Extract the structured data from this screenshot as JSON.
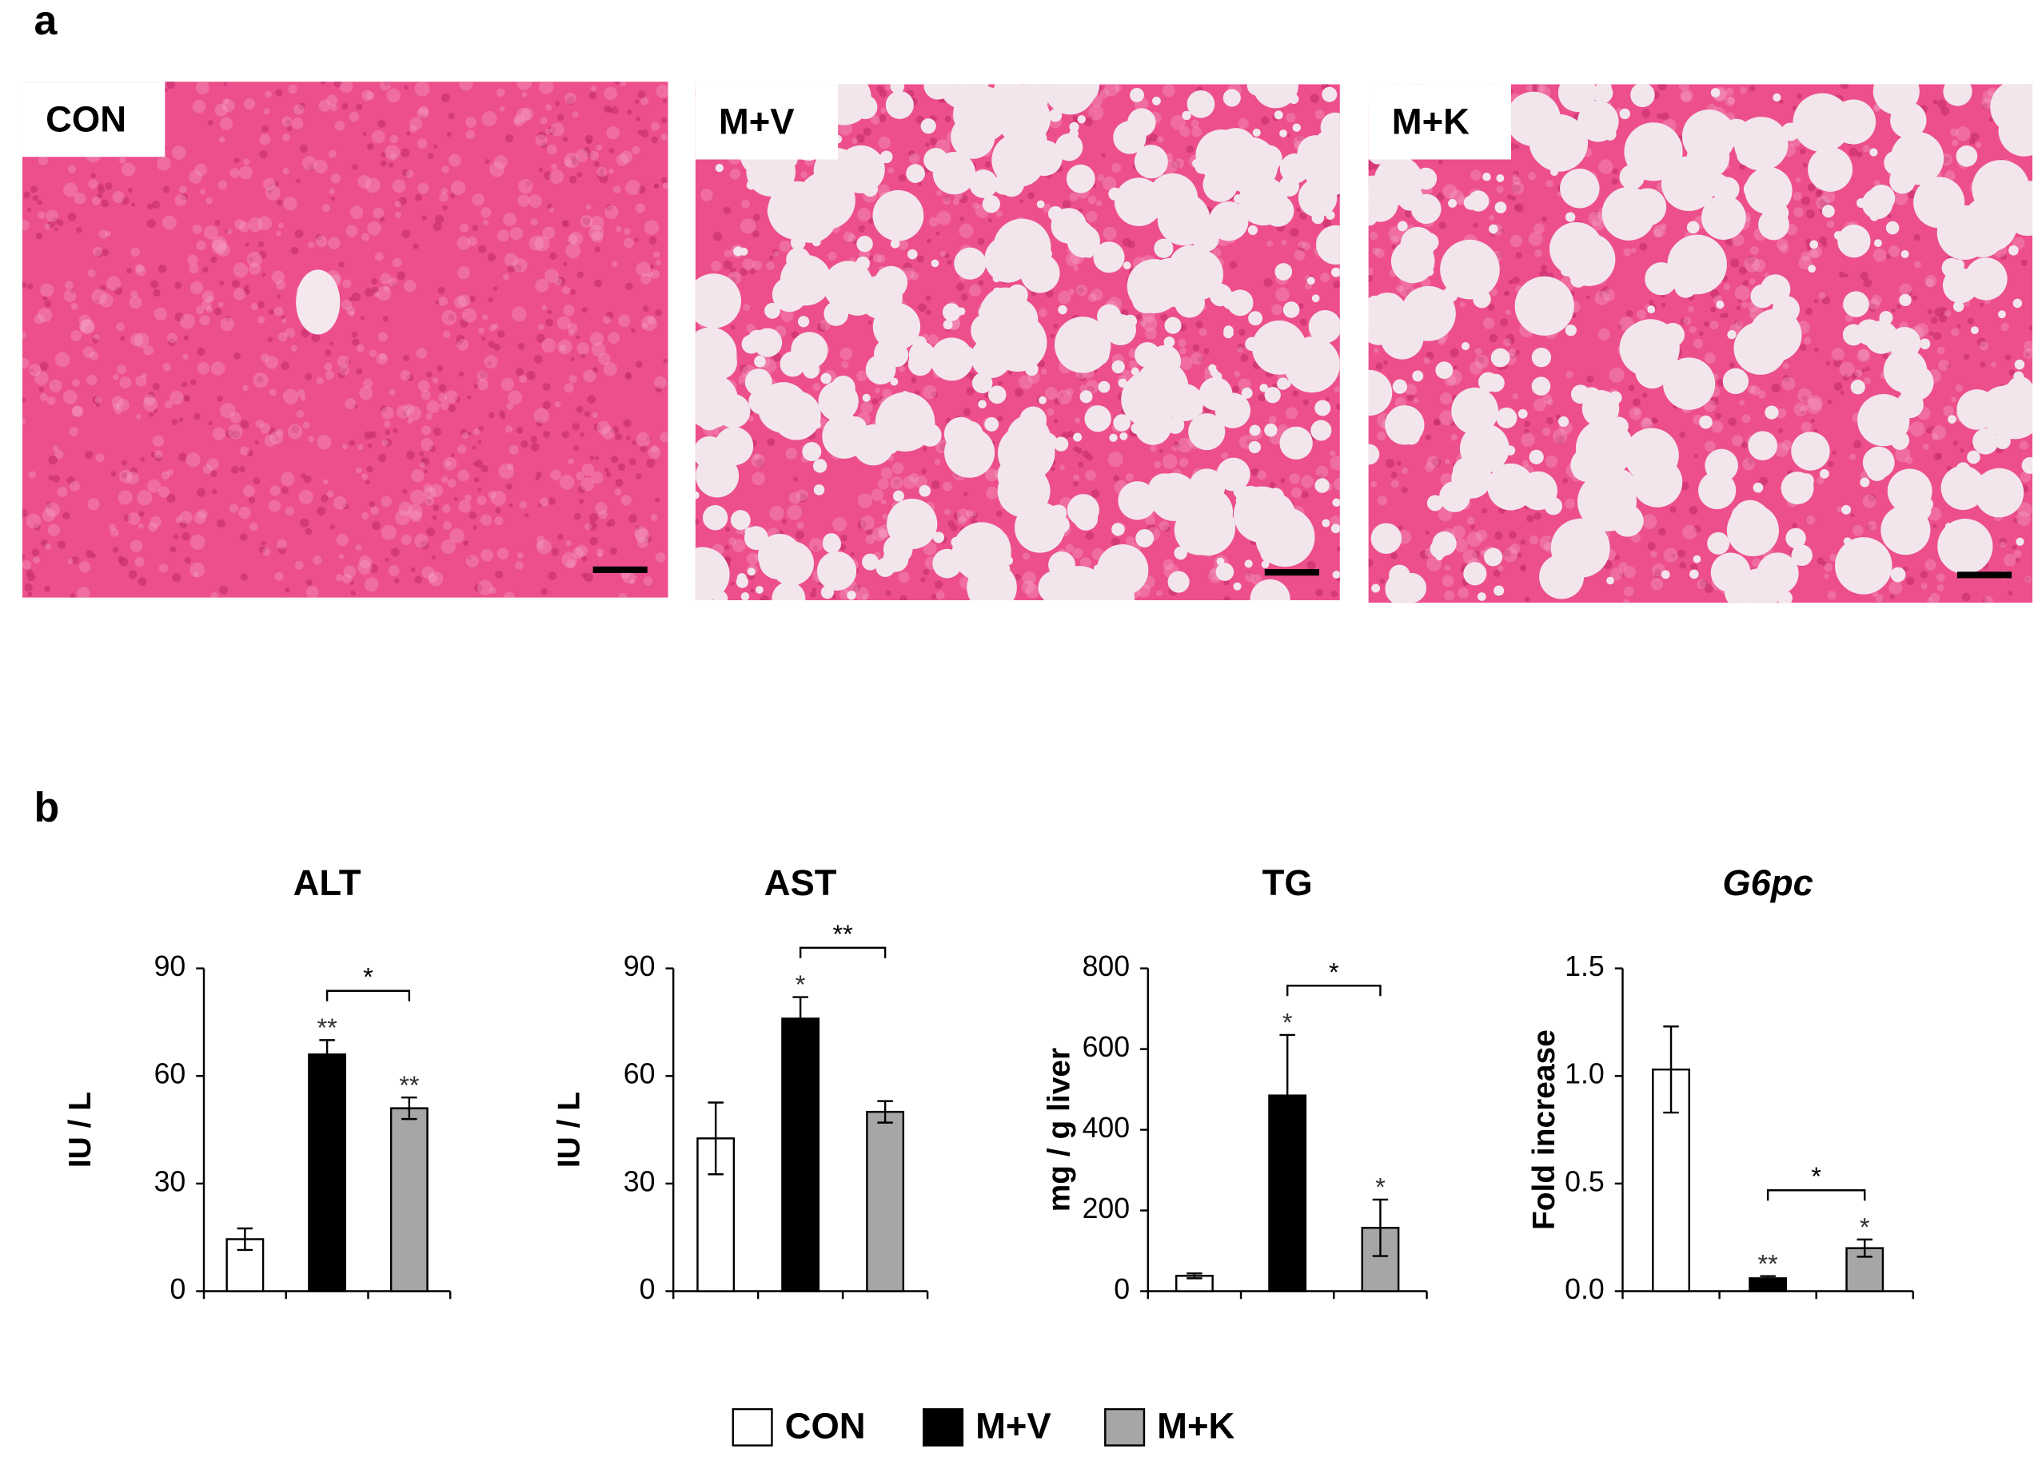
{
  "figure": {
    "panel_a": "a",
    "panel_b": "b",
    "images": [
      "CON",
      "M+V",
      "M+K"
    ]
  },
  "legend": [
    {
      "name": "CON",
      "color": "#ffffff"
    },
    {
      "name": "M+V",
      "color": "#000000"
    },
    {
      "name": "M+K",
      "color": "#a6a6a6"
    }
  ],
  "chart_data": [
    {
      "type": "bar",
      "title": "ALT",
      "ylabel": "IU / L",
      "values": [
        14.5,
        66,
        51
      ],
      "errors": [
        3,
        4,
        3
      ],
      "significance": [
        null,
        "**",
        "**"
      ],
      "comparison": {
        "from": 1,
        "to": 2,
        "label": "*"
      },
      "ylim": [
        0,
        90
      ],
      "yticks": [
        0,
        30,
        60,
        90
      ]
    },
    {
      "type": "bar",
      "title": "AST",
      "ylabel": "IU / L",
      "values": [
        42.6,
        76,
        50
      ],
      "errors": [
        10,
        6,
        3
      ],
      "significance": [
        null,
        "*",
        null
      ],
      "comparison": {
        "from": 1,
        "to": 2,
        "label": "**"
      },
      "ylim": [
        0,
        90
      ],
      "yticks": [
        0,
        30,
        60,
        90
      ]
    },
    {
      "type": "bar",
      "title": "TG",
      "ylabel": "mg / g liver",
      "values": [
        38,
        485,
        157
      ],
      "errors": [
        6,
        150,
        70
      ],
      "significance": [
        null,
        "*",
        "*"
      ],
      "comparison": {
        "from": 1,
        "to": 2,
        "label": "*"
      },
      "ylim": [
        0,
        800
      ],
      "yticks": [
        0,
        200,
        400,
        600,
        800
      ]
    },
    {
      "type": "bar",
      "title": "G6pc",
      "title_style": "italic",
      "ylabel": "Fold increase",
      "values": [
        1.03,
        0.06,
        0.2
      ],
      "errors": [
        0.2,
        0.01,
        0.04
      ],
      "significance": [
        null,
        "**",
        "*"
      ],
      "comparison": {
        "from": 1,
        "to": 2,
        "label": "*"
      },
      "ylim": [
        0,
        1.5
      ],
      "yticks": [
        {
          "value": 0,
          "label": "0.0"
        },
        0.5,
        {
          "value": 1,
          "label": "1.0"
        },
        1.5
      ]
    }
  ]
}
